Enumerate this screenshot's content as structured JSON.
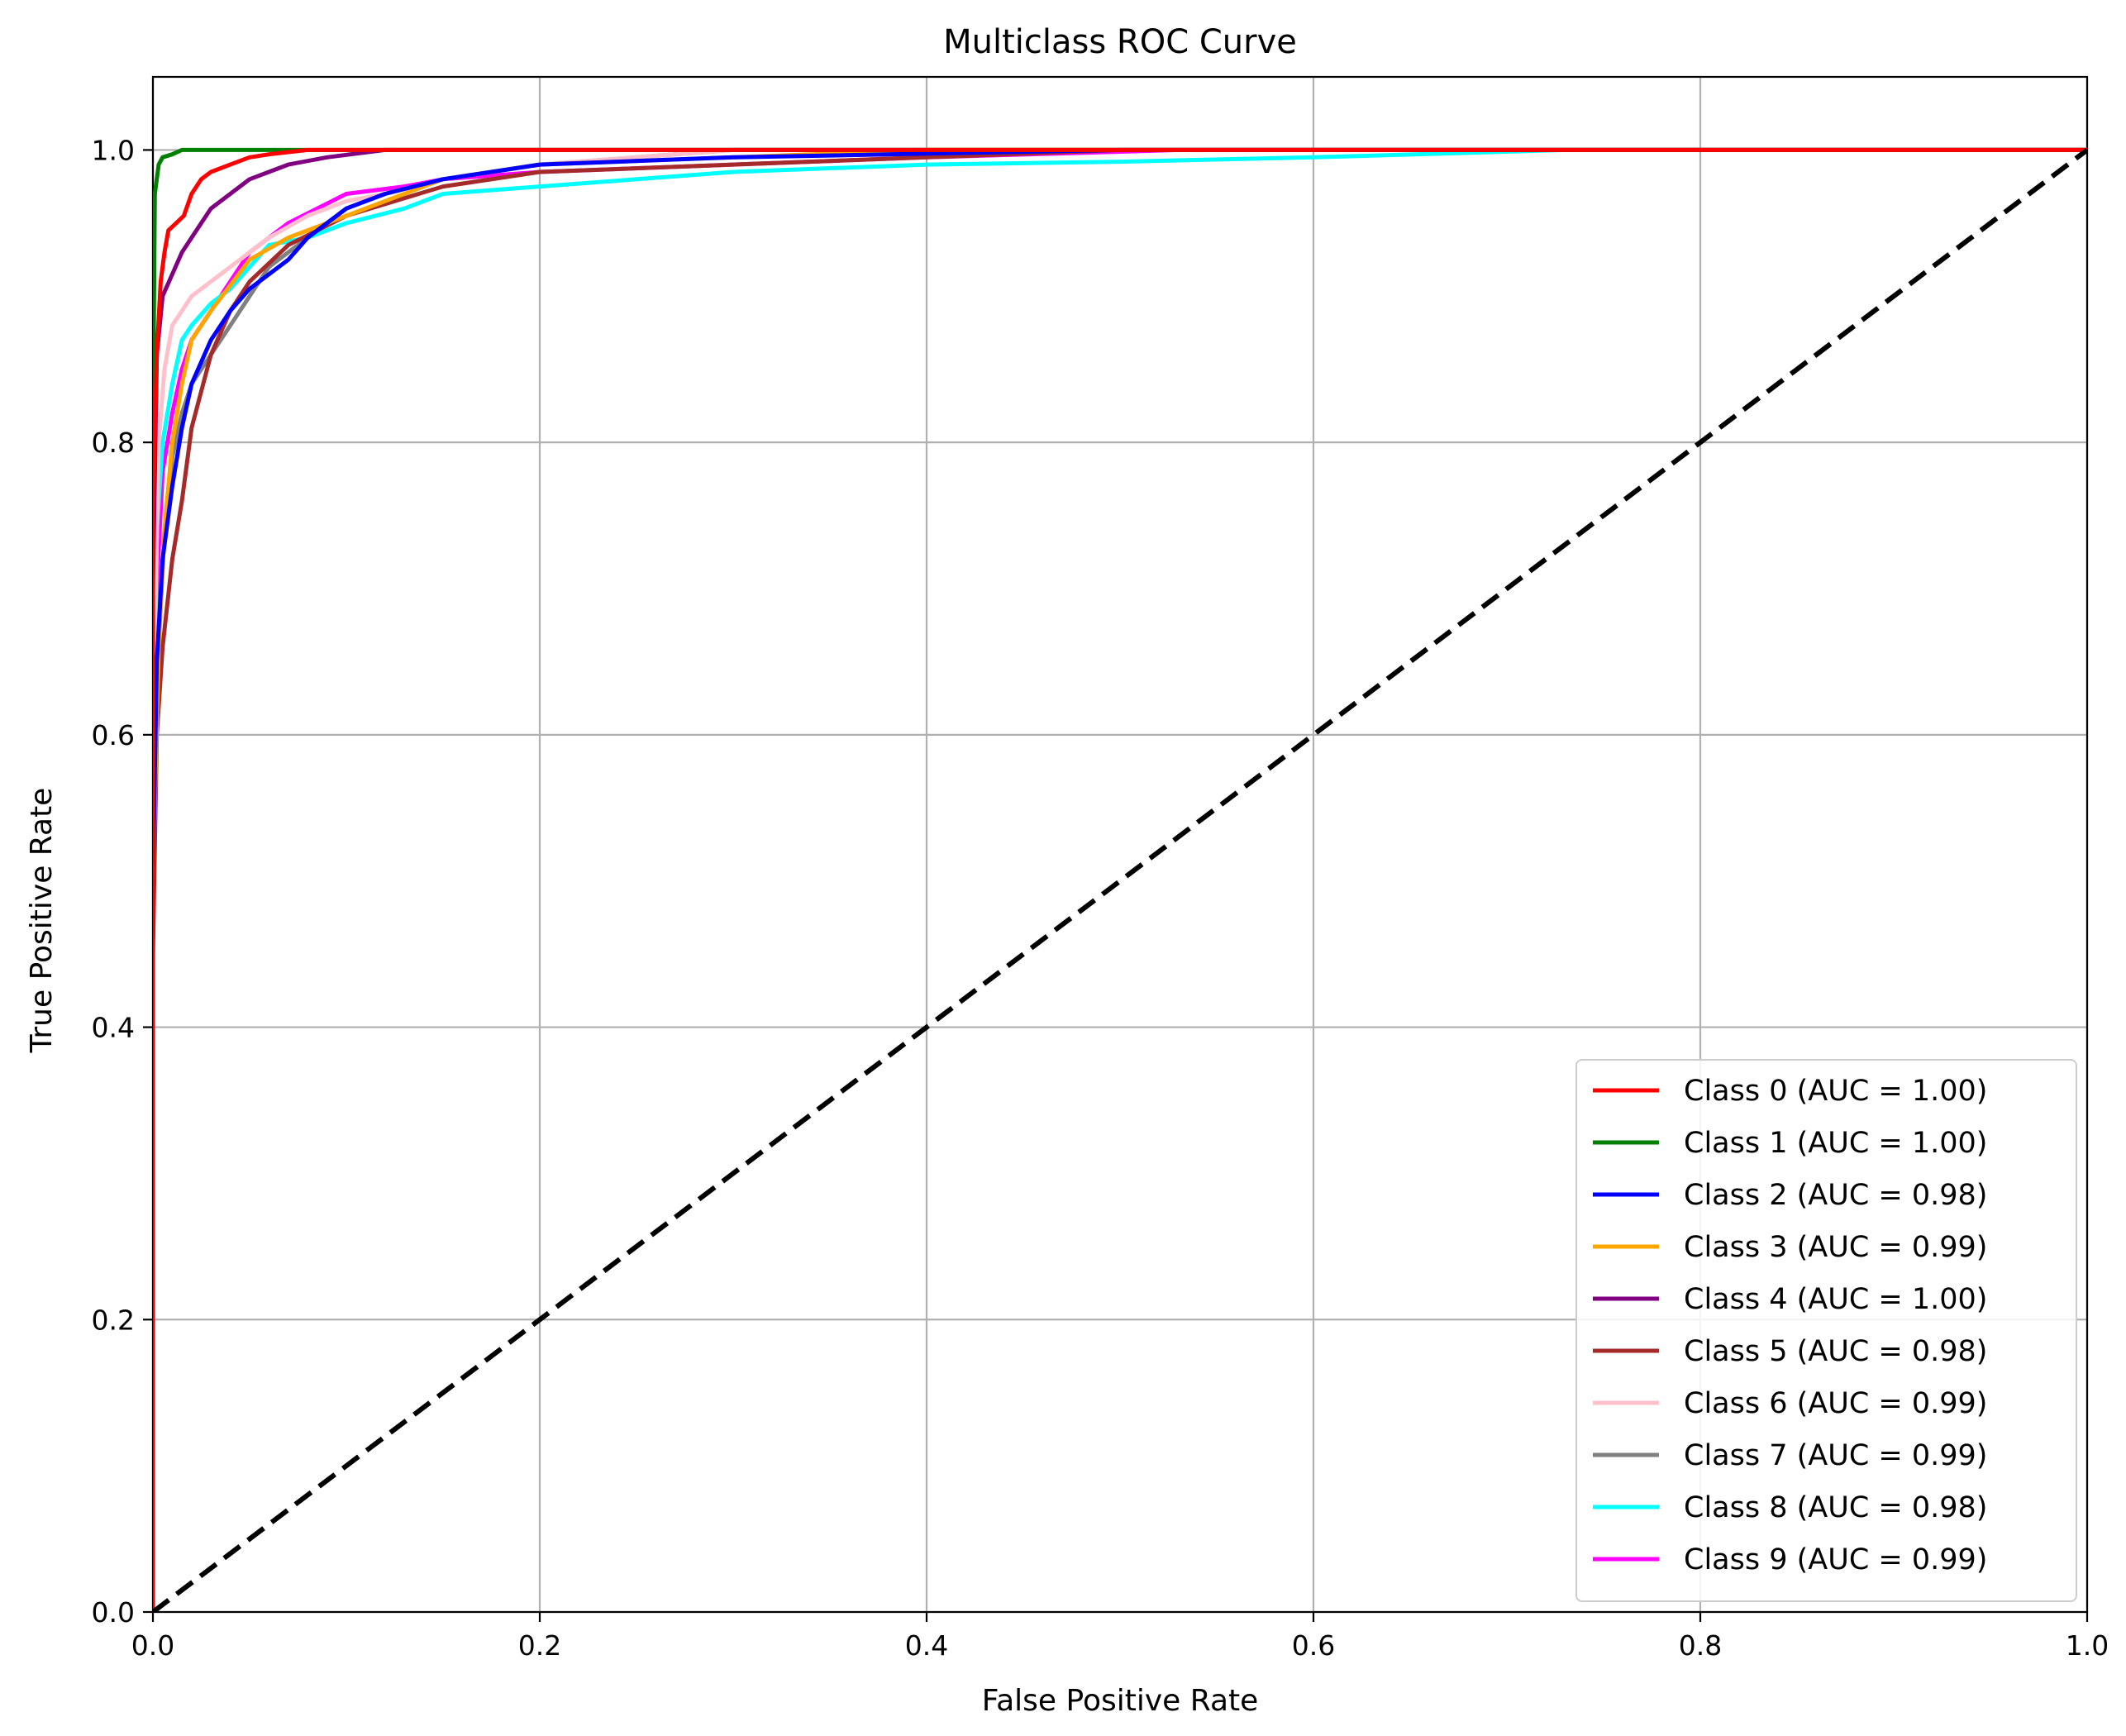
{
  "chart_data": {
    "type": "line",
    "title": "Multiclass ROC Curve",
    "xlabel": "False Positive Rate",
    "ylabel": "True Positive Rate",
    "xlim": [
      0.0,
      1.0
    ],
    "ylim": [
      0.0,
      1.05
    ],
    "xticks": [
      0.0,
      0.2,
      0.4,
      0.6,
      0.8,
      1.0
    ],
    "xtick_labels": [
      "0.0",
      "0.2",
      "0.4",
      "0.6",
      "0.8",
      "1.0"
    ],
    "yticks": [
      0.0,
      0.2,
      0.4,
      0.6,
      0.8,
      1.0
    ],
    "ytick_labels": [
      "0.0",
      "0.2",
      "0.4",
      "0.6",
      "0.8",
      "1.0"
    ],
    "grid": true,
    "legend_position": "lower-right",
    "series": [
      {
        "name": "Class 0 (AUC = 1.00)",
        "color": "#ff0000",
        "x": [
          0,
          0,
          0.002,
          0.004,
          0.006,
          0.008,
          0.012,
          0.016,
          0.02,
          0.025,
          0.03,
          0.04,
          0.05,
          0.06,
          0.08,
          0.1,
          1.0
        ],
        "y": [
          0,
          0.75,
          0.86,
          0.91,
          0.93,
          0.945,
          0.95,
          0.955,
          0.97,
          0.98,
          0.985,
          0.99,
          0.995,
          0.997,
          1.0,
          1.0,
          1.0
        ]
      },
      {
        "name": "Class 1 (AUC = 1.00)",
        "color": "#008000",
        "x": [
          0,
          0,
          0.001,
          0.003,
          0.005,
          0.01,
          0.015,
          0.025,
          1.0
        ],
        "y": [
          0,
          0.8,
          0.97,
          0.99,
          0.995,
          0.997,
          1.0,
          1.0,
          1.0
        ]
      },
      {
        "name": "Class 2 (AUC = 0.98)",
        "color": "#0000ff",
        "x": [
          0,
          0,
          0.002,
          0.005,
          0.01,
          0.015,
          0.02,
          0.03,
          0.04,
          0.05,
          0.06,
          0.07,
          0.08,
          0.1,
          0.12,
          0.15,
          0.2,
          0.3,
          0.5,
          1.0
        ],
        "y": [
          0,
          0.5,
          0.65,
          0.72,
          0.77,
          0.81,
          0.84,
          0.87,
          0.89,
          0.905,
          0.915,
          0.925,
          0.94,
          0.96,
          0.97,
          0.98,
          0.99,
          0.995,
          1.0,
          1.0
        ]
      },
      {
        "name": "Class 3 (AUC = 0.99)",
        "color": "#ffa500",
        "x": [
          0,
          0,
          0.003,
          0.006,
          0.01,
          0.015,
          0.02,
          0.03,
          0.05,
          0.07,
          0.09,
          0.12,
          0.15,
          0.2,
          0.3,
          0.4,
          1.0
        ],
        "y": [
          0,
          0.5,
          0.66,
          0.74,
          0.8,
          0.84,
          0.87,
          0.89,
          0.925,
          0.94,
          0.95,
          0.965,
          0.98,
          0.99,
          0.995,
          1.0,
          1.0
        ]
      },
      {
        "name": "Class 4 (AUC = 1.00)",
        "color": "#800080",
        "x": [
          0,
          0,
          0.002,
          0.005,
          0.01,
          0.015,
          0.02,
          0.03,
          0.04,
          0.05,
          0.07,
          0.09,
          0.12,
          0.15,
          1.0
        ],
        "y": [
          0,
          0.7,
          0.86,
          0.9,
          0.915,
          0.93,
          0.94,
          0.96,
          0.97,
          0.98,
          0.99,
          0.995,
          1.0,
          1.0,
          1.0
        ]
      },
      {
        "name": "Class 5 (AUC = 0.98)",
        "color": "#a52a2a",
        "x": [
          0,
          0,
          0.002,
          0.005,
          0.01,
          0.015,
          0.02,
          0.03,
          0.04,
          0.05,
          0.07,
          0.1,
          0.15,
          0.2,
          0.3,
          0.4,
          0.5,
          1.0
        ],
        "y": [
          0,
          0.45,
          0.6,
          0.66,
          0.72,
          0.76,
          0.81,
          0.86,
          0.89,
          0.91,
          0.935,
          0.955,
          0.975,
          0.985,
          0.99,
          0.995,
          1.0,
          1.0
        ]
      },
      {
        "name": "Class 6 (AUC = 0.99)",
        "color": "#ffc0cb",
        "x": [
          0,
          0,
          0.003,
          0.006,
          0.01,
          0.02,
          0.03,
          0.05,
          0.06,
          0.08,
          0.1,
          0.12,
          0.15,
          0.2,
          0.3,
          1.0
        ],
        "y": [
          0,
          0.6,
          0.8,
          0.85,
          0.88,
          0.9,
          0.91,
          0.93,
          0.94,
          0.955,
          0.965,
          0.97,
          0.98,
          0.99,
          1.0,
          1.0
        ]
      },
      {
        "name": "Class 7 (AUC = 0.99)",
        "color": "#808080",
        "x": [
          0,
          0,
          0.003,
          0.006,
          0.01,
          0.015,
          0.02,
          0.03,
          0.04,
          0.05,
          0.06,
          0.08,
          0.1,
          0.12,
          0.15,
          0.2,
          0.25,
          0.3,
          0.69,
          1.0
        ],
        "y": [
          0,
          0.5,
          0.66,
          0.74,
          0.79,
          0.82,
          0.84,
          0.86,
          0.88,
          0.9,
          0.92,
          0.94,
          0.96,
          0.97,
          0.98,
          0.99,
          0.995,
          1.0,
          1.0,
          1.0
        ]
      },
      {
        "name": "Class 8 (AUC = 0.98)",
        "color": "#00ffff",
        "x": [
          0,
          0,
          0.002,
          0.005,
          0.01,
          0.015,
          0.02,
          0.03,
          0.04,
          0.05,
          0.06,
          0.08,
          0.1,
          0.13,
          0.15,
          0.2,
          0.3,
          0.4,
          0.5,
          0.6,
          0.73,
          1.0
        ],
        "y": [
          0,
          0.5,
          0.74,
          0.8,
          0.84,
          0.87,
          0.88,
          0.895,
          0.905,
          0.92,
          0.935,
          0.94,
          0.95,
          0.96,
          0.97,
          0.975,
          0.985,
          0.99,
          0.992,
          0.995,
          1.0,
          1.0
        ]
      },
      {
        "name": "Class 9 (AUC = 0.99)",
        "color": "#ff00ff",
        "x": [
          0,
          0,
          0.002,
          0.005,
          0.01,
          0.015,
          0.02,
          0.03,
          0.04,
          0.05,
          0.07,
          0.1,
          0.13,
          0.15,
          0.2,
          0.3,
          0.4,
          0.53,
          1.0
        ],
        "y": [
          0,
          0.5,
          0.7,
          0.78,
          0.82,
          0.85,
          0.87,
          0.89,
          0.91,
          0.93,
          0.95,
          0.97,
          0.975,
          0.98,
          0.985,
          0.99,
          0.995,
          1.0,
          1.0
        ]
      }
    ],
    "reference_line": {
      "x": [
        0,
        1
      ],
      "y": [
        0,
        1
      ],
      "color": "#000000",
      "style": "dashed"
    }
  }
}
